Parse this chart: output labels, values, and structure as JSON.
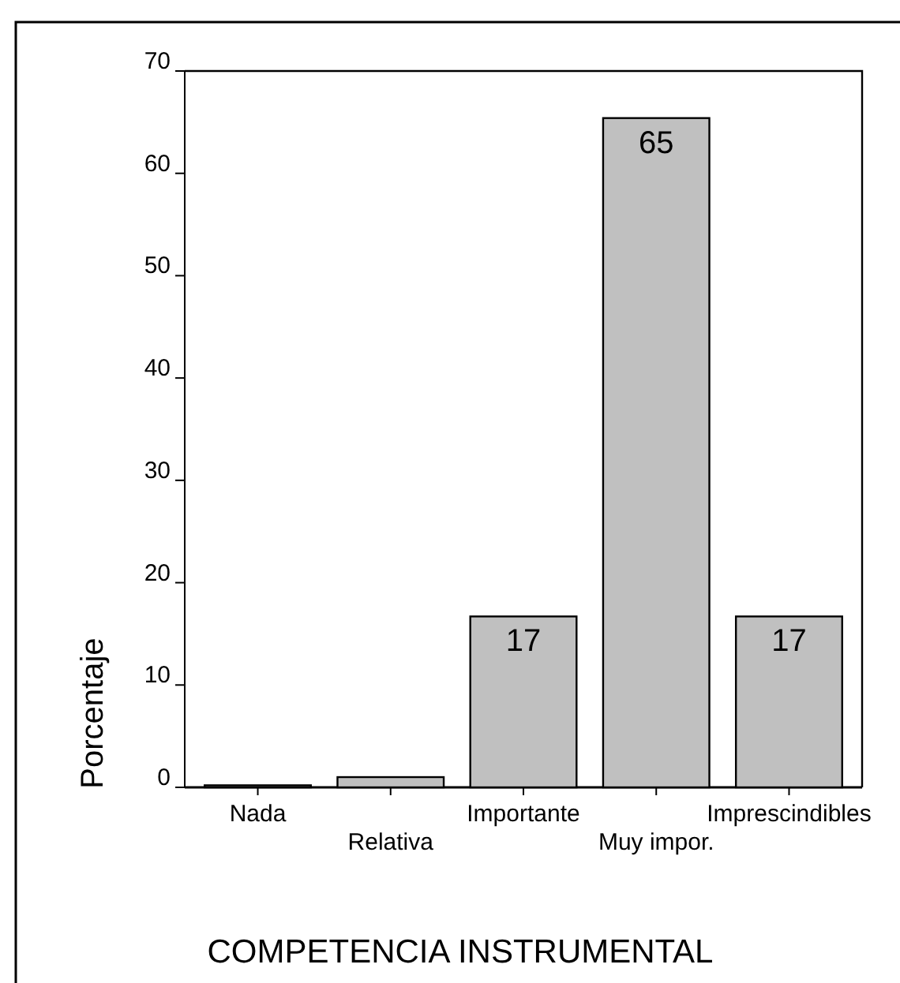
{
  "chart_data": {
    "type": "bar",
    "xlabel": "COMPETENCIA INSTRUMENTAL",
    "ylabel": "Porcentaje",
    "categories": [
      "Nada",
      "Relativa",
      "Importante",
      "Muy impor.",
      "Imprescindibles"
    ],
    "values": [
      0.2,
      1,
      16.7,
      65.4,
      16.7
    ],
    "value_labels": [
      null,
      null,
      "17",
      "65",
      "17"
    ],
    "color": "#c0c0c0",
    "ylim": [
      0,
      70
    ],
    "yticks": [
      0,
      10,
      20,
      30,
      40,
      50,
      60,
      70
    ],
    "grid": false
  }
}
